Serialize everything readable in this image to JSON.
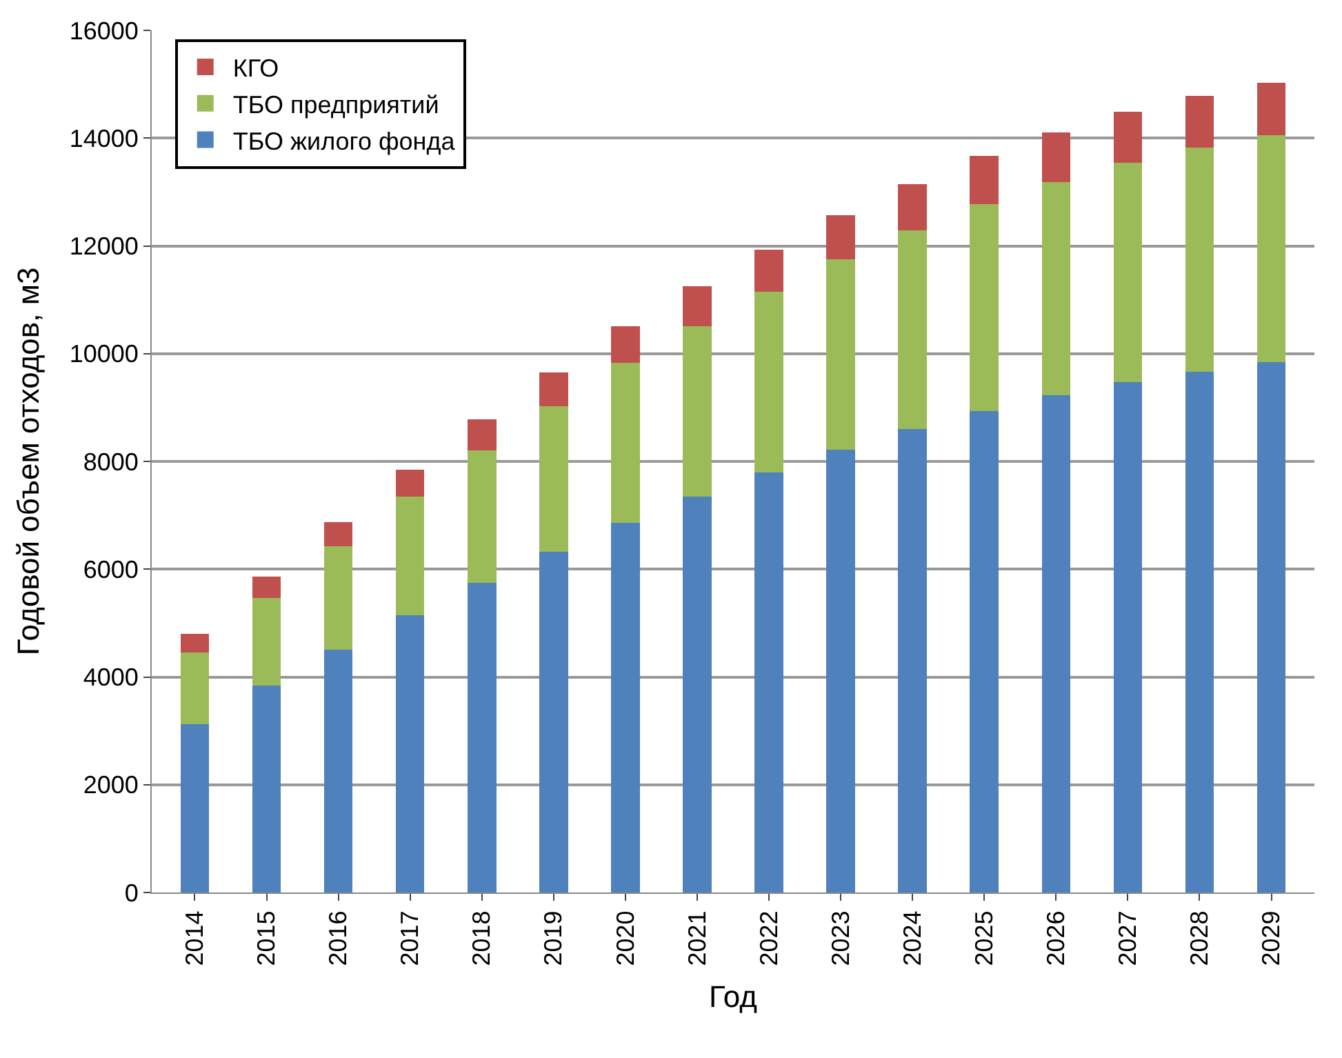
{
  "chart_data": {
    "type": "bar",
    "stacked": true,
    "xlabel": "Год",
    "ylabel": "Годовой объем отходов, м3",
    "categories": [
      "2014",
      "2015",
      "2016",
      "2017",
      "2018",
      "2019",
      "2020",
      "2021",
      "2022",
      "2023",
      "2024",
      "2025",
      "2026",
      "2027",
      "2028",
      "2029"
    ],
    "series": [
      {
        "name": "ТБО жилого фонда",
        "color": "#4f81bd",
        "values": [
          3120,
          3840,
          4500,
          5150,
          5750,
          6320,
          6860,
          7350,
          7800,
          8220,
          8600,
          8930,
          9230,
          9470,
          9670,
          9840
        ]
      },
      {
        "name": "ТБО предприятий",
        "color": "#9bbb59",
        "values": [
          1340,
          1630,
          1930,
          2200,
          2460,
          2710,
          2970,
          3160,
          3350,
          3530,
          3690,
          3840,
          3950,
          4070,
          4160,
          4220
        ]
      },
      {
        "name": "КГО",
        "color": "#c0504d",
        "values": [
          340,
          390,
          450,
          500,
          570,
          620,
          680,
          740,
          780,
          820,
          860,
          900,
          930,
          950,
          960,
          970
        ]
      }
    ],
    "ylim": [
      0,
      16000
    ],
    "yticks": [
      0,
      2000,
      4000,
      6000,
      8000,
      10000,
      12000,
      14000,
      16000
    ],
    "grid": "y",
    "legend": "top left"
  }
}
